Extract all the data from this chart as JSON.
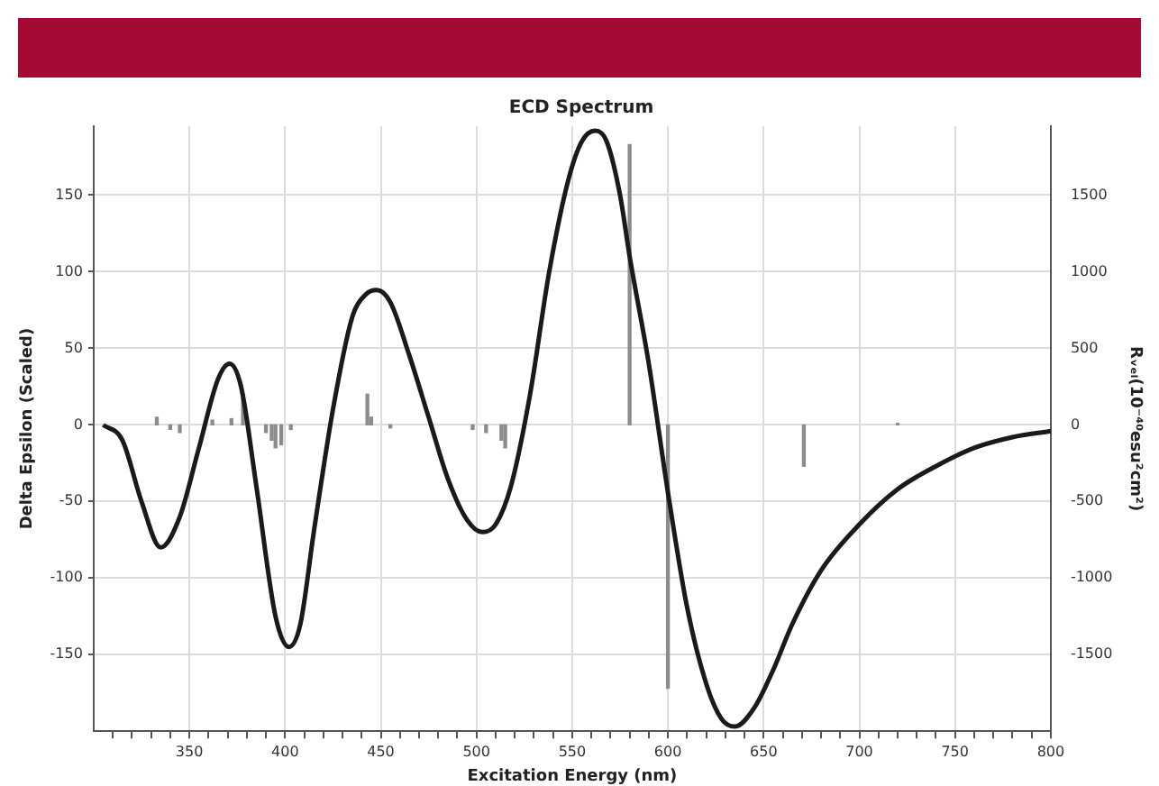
{
  "chart_data": {
    "type": "line",
    "title": "ECD Spectrum",
    "xlabel": "Excitation Energy (nm)",
    "ylabel": "Delta Epsilon (Scaled)",
    "y2label": "Rᵥₑₗ(10⁻⁴⁰esu²cm²)",
    "xlim": [
      300,
      800
    ],
    "xticks": [
      {
        "value": 310,
        "label": null
      },
      {
        "value": 320,
        "label": null
      },
      {
        "value": 330,
        "label": null
      },
      {
        "value": 340,
        "label": null
      },
      350,
      {
        "value": 360,
        "label": null
      },
      {
        "value": 370,
        "label": null
      },
      {
        "value": 380,
        "label": null
      },
      {
        "value": 390,
        "label": null
      },
      400,
      {
        "value": 410,
        "label": null
      },
      {
        "value": 420,
        "label": null
      },
      {
        "value": 430,
        "label": null
      },
      {
        "value": 440,
        "label": null
      },
      450,
      {
        "value": 460,
        "label": null
      },
      {
        "value": 470,
        "label": null
      },
      {
        "value": 480,
        "label": null
      },
      {
        "value": 490,
        "label": null
      },
      500,
      {
        "value": 510,
        "label": null
      },
      {
        "value": 520,
        "label": null
      },
      {
        "value": 530,
        "label": null
      },
      {
        "value": 540,
        "label": null
      },
      550,
      {
        "value": 560,
        "label": null
      },
      {
        "value": 570,
        "label": null
      },
      {
        "value": 580,
        "label": null
      },
      {
        "value": 590,
        "label": null
      },
      600,
      {
        "value": 610,
        "label": null
      },
      {
        "value": 620,
        "label": null
      },
      {
        "value": 630,
        "label": null
      },
      {
        "value": 640,
        "label": null
      },
      650,
      {
        "value": 660,
        "label": null
      },
      {
        "value": 670,
        "label": null
      },
      {
        "value": 680,
        "label": null
      },
      {
        "value": 690,
        "label": null
      },
      700,
      {
        "value": 710,
        "label": null
      },
      {
        "value": 720,
        "label": null
      },
      {
        "value": 730,
        "label": null
      },
      {
        "value": 740,
        "label": null
      },
      750,
      {
        "value": 760,
        "label": null
      },
      {
        "value": 770,
        "label": null
      },
      {
        "value": 780,
        "label": null
      },
      {
        "value": 790,
        "label": null
      },
      800
    ],
    "ylim": [
      -200,
      195
    ],
    "yticks": [
      -150,
      -100,
      -50,
      0,
      50,
      100,
      150
    ],
    "y2lim": [
      -2000,
      1950
    ],
    "y2ticks": [
      -1500,
      -1000,
      -500,
      0,
      500,
      1000,
      1500
    ],
    "grid": true,
    "legend": false,
    "marker": "none",
    "line_style": "solid",
    "series": [
      {
        "color": "#1a1a1a",
        "x": [
          305,
          315,
          325,
          335,
          345,
          355,
          365,
          371,
          377,
          385,
          395,
          402,
          408,
          415,
          425,
          435,
          442,
          448,
          455,
          465,
          475,
          485,
          495,
          503,
          510,
          518,
          528,
          538,
          548,
          555,
          562,
          568,
          575,
          580,
          590,
          600,
          610,
          620,
          628,
          635,
          645,
          655,
          665,
          680,
          700,
          720,
          740,
          760,
          780,
          800
        ],
        "values": [
          0,
          -10,
          -50,
          -80,
          -60,
          -15,
          30,
          40,
          25,
          -40,
          -125,
          -145,
          -130,
          -70,
          10,
          70,
          85,
          88,
          80,
          45,
          5,
          -35,
          -62,
          -70,
          -65,
          -40,
          20,
          100,
          160,
          185,
          192,
          185,
          150,
          110,
          40,
          -44,
          -119,
          -169,
          -192,
          -197,
          -185,
          -160,
          -130,
          -95,
          -65,
          -42,
          -27,
          -15,
          -8,
          -4
        ]
      },
      {
        "type": "bar",
        "axis": "y2",
        "color": "#8c8c8c",
        "x": [
          333,
          340,
          345,
          358,
          362,
          372,
          378,
          390,
          393,
          395,
          398,
          403,
          443,
          445,
          455,
          498,
          505,
          513,
          515,
          580,
          600,
          671,
          720
        ],
        "values": [
          50,
          -30,
          -50,
          null,
          30,
          40,
          200,
          -50,
          -100,
          -150,
          -130,
          -30,
          200,
          50,
          -20,
          -30,
          -50,
          -100,
          -150,
          1830,
          -1720,
          -270,
          10
        ]
      }
    ]
  }
}
